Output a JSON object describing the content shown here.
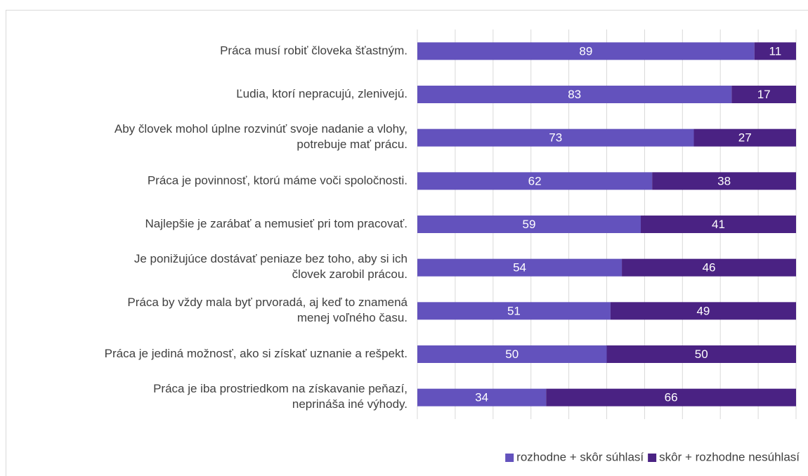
{
  "chart_data": {
    "type": "stacked-bar-horizontal",
    "categories": [
      "Práca musí robiť človeka šťastným.",
      "Ľudia, ktorí nepracujú, zlenivejú.",
      "Aby človek mohol úplne rozvinúť svoje nadanie a vlohy,\npotrebuje mať prácu.",
      "Práca je povinnosť, ktorú máme voči spoločnosti.",
      "Najlepšie je zarábať a nemusieť pri tom pracovať.",
      "Je ponižujúce dostávať peniaze bez toho, aby si ich\nčlovek zarobil prácou.",
      "Práca by vždy mala byť prvoradá, aj keď to znamená\nmenej voľného času.",
      "Práca je jediná možnosť, ako si získať uznanie a rešpekt.",
      "Práca je iba prostriedkom na získavanie peňazí,\nneprináša iné výhody."
    ],
    "series": [
      {
        "name": "rozhodne + skôr súhlasí",
        "color": "#6352bd",
        "values": [
          89,
          83,
          73,
          62,
          59,
          54,
          51,
          50,
          34
        ]
      },
      {
        "name": "skôr + rozhodne nesúhlasí",
        "color": "#4a2283",
        "values": [
          11,
          17,
          27,
          38,
          41,
          46,
          49,
          50,
          66
        ]
      }
    ],
    "xlim": [
      0,
      100
    ],
    "xticks": [
      0,
      10,
      20,
      30,
      40,
      50,
      60,
      70,
      80,
      90,
      100
    ],
    "grid": true,
    "legend": "bottom-right"
  }
}
